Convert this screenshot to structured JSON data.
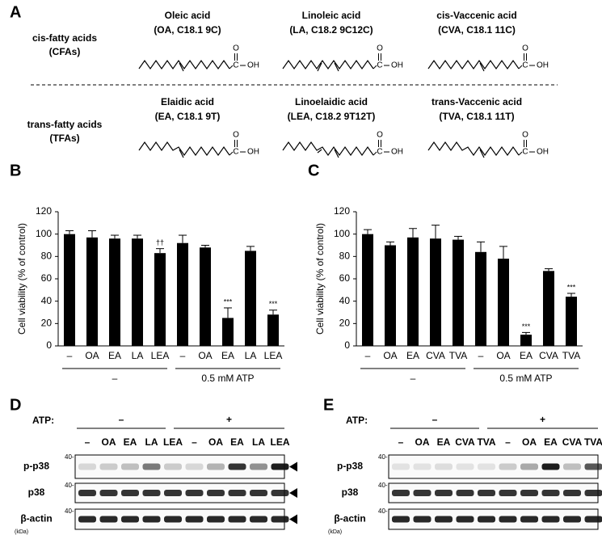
{
  "panel_a": {
    "label": "A",
    "rows": [
      {
        "label": [
          "cis-fatty acids",
          "(CFAs)"
        ],
        "acids": [
          [
            "Oleic acid",
            "(OA, C18.1 9C)"
          ],
          [
            "Linoleic acid",
            "(LA, C18.2 9C12C)"
          ],
          [
            "cis-Vaccenic acid",
            "(CVA, C18.1 11C)"
          ]
        ]
      },
      {
        "label": [
          "trans-fatty acids",
          "(TFAs)"
        ],
        "acids": [
          [
            "Elaidic acid",
            "(EA, C18.1 9T)"
          ],
          [
            "Linoelaidic acid",
            "(LEA, C18.2 9T12T)"
          ],
          [
            "trans-Vaccenic acid",
            "(TVA, C18.1 11T)"
          ]
        ]
      }
    ],
    "carboxyl": {
      "o": "O",
      "c": "C",
      "oh": "OH"
    }
  },
  "chart_data": [
    {
      "type": "bar",
      "panel_label": "B",
      "ylabel": "Cell viability (% of control)",
      "categories": [
        "–",
        "OA",
        "EA",
        "LA",
        "LEA",
        "–",
        "OA",
        "EA",
        "LA",
        "LEA"
      ],
      "values": [
        100,
        97,
        96,
        96,
        83,
        92,
        88,
        25,
        85,
        28
      ],
      "errors": [
        3,
        6,
        3,
        3,
        4,
        7,
        2,
        9,
        4,
        4
      ],
      "annotations": [
        null,
        null,
        null,
        null,
        "††",
        null,
        null,
        "***",
        null,
        "***"
      ],
      "groups": [
        "–",
        "0.5 mM ATP"
      ],
      "color": "#000000",
      "ylim": [
        0,
        120
      ],
      "yticks": [
        0,
        20,
        40,
        60,
        80,
        100,
        120
      ]
    },
    {
      "type": "bar",
      "panel_label": "C",
      "ylabel": "Cell viability (% of control)",
      "categories": [
        "–",
        "OA",
        "EA",
        "CVA",
        "TVA",
        "–",
        "OA",
        "EA",
        "CVA",
        "TVA"
      ],
      "values": [
        100,
        90,
        97,
        96,
        95,
        84,
        78,
        10,
        67,
        44
      ],
      "errors": [
        4,
        3,
        8,
        12,
        3,
        9,
        11,
        2,
        2,
        3
      ],
      "annotations": [
        null,
        null,
        null,
        null,
        null,
        null,
        null,
        "***",
        null,
        "***"
      ],
      "groups": [
        "–",
        "0.5 mM ATP"
      ],
      "color": "#000000",
      "ylim": [
        0,
        120
      ],
      "yticks": [
        0,
        20,
        40,
        60,
        80,
        100,
        120
      ]
    }
  ],
  "blots": [
    {
      "label": "D",
      "atp_label": "ATP:",
      "conditions": [
        "–",
        "+"
      ],
      "lanes": [
        "–",
        "OA",
        "EA",
        "LA",
        "LEA",
        "–",
        "OA",
        "EA",
        "LA",
        "LEA"
      ],
      "rows": [
        "p-p38",
        "p38",
        "β-actin"
      ],
      "marker": "40-",
      "unit": "(kDa)"
    },
    {
      "label": "E",
      "atp_label": "ATP:",
      "conditions": [
        "–",
        "+"
      ],
      "lanes": [
        "–",
        "OA",
        "EA",
        "CVA",
        "TVA",
        "–",
        "OA",
        "EA",
        "CVA",
        "TVA"
      ],
      "rows": [
        "p-p38",
        "p38",
        "β-actin"
      ],
      "marker": "40-",
      "unit": "(kDa)"
    }
  ]
}
